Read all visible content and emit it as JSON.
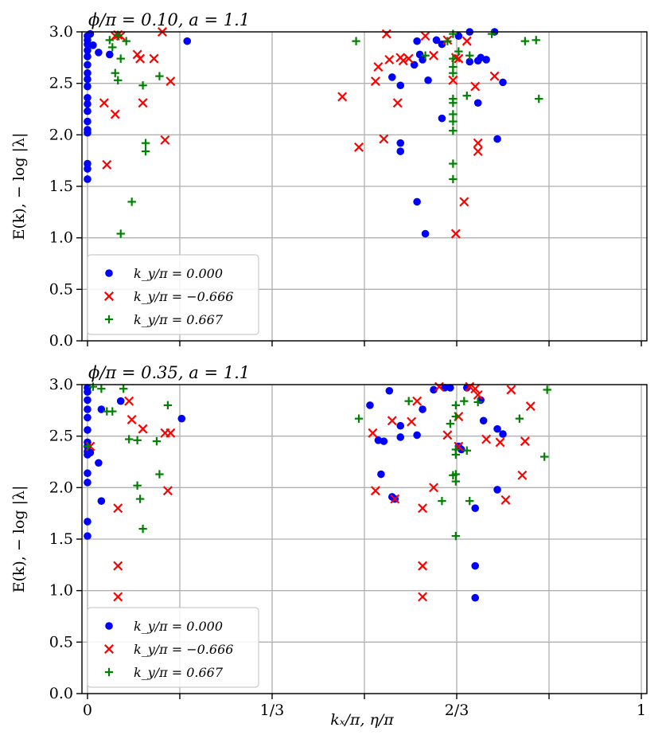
{
  "chart_data": [
    {
      "type": "scatter",
      "title": "ϕ/π = 0.10,  a = 1.1",
      "ylabel": "E(k), − log |λ|",
      "xlabel": "",
      "xlim": [
        -0.01,
        1.01
      ],
      "ylim": [
        0,
        3
      ],
      "yticks": [
        "0.0",
        "0.5",
        "1.0",
        "1.5",
        "2.0",
        "2.5",
        "3.0"
      ],
      "xtick_labels": [],
      "grid": true,
      "legend_position": "lower-left",
      "series": [
        {
          "name": "k_y/π = 0.000",
          "marker": "circle",
          "color": "#0000ff",
          "points": [
            [
              0,
              2.96
            ],
            [
              0,
              2.92
            ],
            [
              0,
              2.88
            ],
            [
              0,
              2.82
            ],
            [
              0,
              2.76
            ],
            [
              0,
              2.68
            ],
            [
              0,
              2.6
            ],
            [
              0,
              2.54
            ],
            [
              0,
              2.47
            ],
            [
              0,
              2.36
            ],
            [
              0,
              2.3
            ],
            [
              0,
              2.23
            ],
            [
              0,
              2.13
            ],
            [
              0,
              2.05
            ],
            [
              0,
              2.02
            ],
            [
              0,
              1.72
            ],
            [
              0,
              1.67
            ],
            [
              0,
              1.57
            ],
            [
              0.005,
              2.98
            ],
            [
              0.01,
              2.87
            ],
            [
              0.02,
              2.8
            ],
            [
              0.04,
              2.78
            ],
            [
              0.18,
              2.91
            ],
            [
              0.55,
              2.56
            ],
            [
              0.565,
              2.48
            ],
            [
              0.565,
              1.92
            ],
            [
              0.565,
              1.84
            ],
            [
              0.59,
              2.68
            ],
            [
              0.595,
              2.91
            ],
            [
              0.595,
              1.35
            ],
            [
              0.6,
              2.78
            ],
            [
              0.605,
              2.73
            ],
            [
              0.61,
              1.04
            ],
            [
              0.615,
              2.53
            ],
            [
              0.63,
              2.92
            ],
            [
              0.64,
              2.88
            ],
            [
              0.64,
              2.16
            ],
            [
              0.67,
              2.96
            ],
            [
              0.69,
              2.71
            ],
            [
              0.69,
              3.0
            ],
            [
              0.705,
              2.72
            ],
            [
              0.705,
              2.31
            ],
            [
              0.71,
              2.75
            ],
            [
              0.72,
              2.73
            ],
            [
              0.735,
              3.0
            ],
            [
              0.74,
              1.96
            ],
            [
              0.75,
              2.51
            ]
          ]
        },
        {
          "name": "k_y/π = −0.666",
          "marker": "x",
          "color": "#ff0000",
          "points": [
            [
              0.05,
              2.96
            ],
            [
              0.055,
              2.97
            ],
            [
              0.06,
              2.96
            ],
            [
              0.03,
              2.31
            ],
            [
              0.035,
              1.71
            ],
            [
              0.05,
              2.2
            ],
            [
              0.09,
              2.78
            ],
            [
              0.095,
              2.74
            ],
            [
              0.1,
              2.31
            ],
            [
              0.12,
              2.74
            ],
            [
              0.135,
              3.0
            ],
            [
              0.15,
              2.52
            ],
            [
              0.14,
              1.95
            ],
            [
              0.46,
              2.37
            ],
            [
              0.49,
              1.88
            ],
            [
              0.52,
              2.52
            ],
            [
              0.525,
              2.66
            ],
            [
              0.535,
              1.96
            ],
            [
              0.54,
              2.98
            ],
            [
              0.545,
              2.73
            ],
            [
              0.56,
              2.31
            ],
            [
              0.565,
              2.75
            ],
            [
              0.57,
              2.72
            ],
            [
              0.58,
              2.74
            ],
            [
              0.61,
              2.96
            ],
            [
              0.625,
              2.77
            ],
            [
              0.65,
              2.92
            ],
            [
              0.66,
              2.53
            ],
            [
              0.665,
              1.04
            ],
            [
              0.665,
              2.75
            ],
            [
              0.67,
              2.74
            ],
            [
              0.68,
              1.35
            ],
            [
              0.685,
              2.91
            ],
            [
              0.7,
              2.47
            ],
            [
              0.705,
              1.92
            ],
            [
              0.705,
              1.84
            ],
            [
              0.735,
              2.57
            ]
          ]
        },
        {
          "name": "k_y/π = 0.667",
          "marker": "plus",
          "color": "#008000",
          "points": [
            [
              0.04,
              2.92
            ],
            [
              0.045,
              2.85
            ],
            [
              0.05,
              2.6
            ],
            [
              0.055,
              2.53
            ],
            [
              0.06,
              2.74
            ],
            [
              0.07,
              2.91
            ],
            [
              0.055,
              2.97
            ],
            [
              0.06,
              1.04
            ],
            [
              0.08,
              1.35
            ],
            [
              0.1,
              2.48
            ],
            [
              0.105,
              1.92
            ],
            [
              0.105,
              1.84
            ],
            [
              0.13,
              2.57
            ],
            [
              0.485,
              2.91
            ],
            [
              0.61,
              2.77
            ],
            [
              0.65,
              2.91
            ],
            [
              0.66,
              2.98
            ],
            [
              0.66,
              2.74
            ],
            [
              0.66,
              2.66
            ],
            [
              0.66,
              2.6
            ],
            [
              0.66,
              2.35
            ],
            [
              0.66,
              2.31
            ],
            [
              0.66,
              2.2
            ],
            [
              0.66,
              2.13
            ],
            [
              0.66,
              2.04
            ],
            [
              0.66,
              1.72
            ],
            [
              0.66,
              1.57
            ],
            [
              0.67,
              2.81
            ],
            [
              0.685,
              2.38
            ],
            [
              0.69,
              2.77
            ],
            [
              0.73,
              2.98
            ],
            [
              0.79,
              2.91
            ],
            [
              0.81,
              2.92
            ],
            [
              0.815,
              2.35
            ]
          ]
        }
      ]
    },
    {
      "type": "scatter",
      "title": "ϕ/π = 0.35,  a = 1.1",
      "ylabel": "E(k), − log |λ|",
      "xlabel": "kₓ/π, η/π",
      "xlim": [
        -0.01,
        1.01
      ],
      "ylim": [
        0,
        3
      ],
      "yticks": [
        "0.0",
        "0.5",
        "1.0",
        "1.5",
        "2.0",
        "2.5",
        "3.0"
      ],
      "xtick_labels": [
        {
          "x": 0,
          "label": "0"
        },
        {
          "x": 0.3333,
          "label": "1/3"
        },
        {
          "x": 0.6667,
          "label": "2/3"
        },
        {
          "x": 1,
          "label": "1"
        }
      ],
      "grid": true,
      "legend_position": "lower-left",
      "series": [
        {
          "name": "k_y/π = 0.000",
          "marker": "circle",
          "color": "#0000ff",
          "points": [
            [
              0,
              2.97
            ],
            [
              0,
              2.93
            ],
            [
              0,
              2.85
            ],
            [
              0,
              2.76
            ],
            [
              0,
              2.68
            ],
            [
              0,
              2.56
            ],
            [
              0,
              2.44
            ],
            [
              0,
              2.4
            ],
            [
              0,
              2.35
            ],
            [
              0,
              2.32
            ],
            [
              0,
              2.14
            ],
            [
              0,
              2.05
            ],
            [
              0,
              1.67
            ],
            [
              0,
              1.53
            ],
            [
              0.005,
              2.34
            ],
            [
              0.02,
              2.24
            ],
            [
              0.025,
              2.76
            ],
            [
              0.025,
              1.87
            ],
            [
              0.06,
              2.84
            ],
            [
              0.17,
              2.67
            ],
            [
              0.51,
              2.8
            ],
            [
              0.525,
              2.46
            ],
            [
              0.53,
              2.13
            ],
            [
              0.535,
              2.45
            ],
            [
              0.545,
              2.94
            ],
            [
              0.55,
              1.91
            ],
            [
              0.555,
              1.89
            ],
            [
              0.565,
              2.6
            ],
            [
              0.565,
              2.49
            ],
            [
              0.595,
              2.51
            ],
            [
              0.605,
              2.76
            ],
            [
              0.625,
              2.95
            ],
            [
              0.645,
              2.97
            ],
            [
              0.655,
              2.97
            ],
            [
              0.67,
              2.4
            ],
            [
              0.675,
              2.37
            ],
            [
              0.685,
              2.97
            ],
            [
              0.7,
              1.8
            ],
            [
              0.7,
              1.24
            ],
            [
              0.7,
              0.93
            ],
            [
              0.71,
              2.85
            ],
            [
              0.715,
              2.65
            ],
            [
              0.74,
              2.57
            ],
            [
              0.75,
              2.52
            ],
            [
              0.74,
              1.98
            ]
          ]
        },
        {
          "name": "k_y/π = −0.666",
          "marker": "x",
          "color": "#ff0000",
          "points": [
            [
              0.005,
              2.4
            ],
            [
              0.055,
              1.8
            ],
            [
              0.055,
              1.24
            ],
            [
              0.055,
              0.94
            ],
            [
              0.075,
              2.84
            ],
            [
              0.08,
              2.66
            ],
            [
              0.1,
              2.57
            ],
            [
              0.14,
              2.53
            ],
            [
              0.145,
              1.97
            ],
            [
              0.15,
              2.53
            ],
            [
              0.515,
              2.53
            ],
            [
              0.52,
              1.97
            ],
            [
              0.55,
              2.65
            ],
            [
              0.555,
              1.89
            ],
            [
              0.585,
              2.64
            ],
            [
              0.595,
              2.84
            ],
            [
              0.605,
              1.8
            ],
            [
              0.605,
              1.24
            ],
            [
              0.605,
              0.94
            ],
            [
              0.625,
              2.0
            ],
            [
              0.635,
              2.98
            ],
            [
              0.65,
              2.51
            ],
            [
              0.67,
              2.69
            ],
            [
              0.67,
              2.4
            ],
            [
              0.69,
              2.98
            ],
            [
              0.7,
              2.96
            ],
            [
              0.705,
              2.9
            ],
            [
              0.72,
              2.47
            ],
            [
              0.745,
              2.44
            ],
            [
              0.755,
              1.88
            ],
            [
              0.765,
              2.95
            ],
            [
              0.785,
              2.12
            ],
            [
              0.79,
              2.45
            ],
            [
              0.8,
              2.79
            ]
          ]
        },
        {
          "name": "k_y/π = 0.667",
          "marker": "plus",
          "color": "#008000",
          "points": [
            [
              0,
              2.4
            ],
            [
              0.01,
              2.98
            ],
            [
              0.025,
              2.96
            ],
            [
              0.035,
              2.74
            ],
            [
              0.045,
              2.74
            ],
            [
              0.065,
              2.96
            ],
            [
              0.075,
              2.47
            ],
            [
              0.09,
              2.46
            ],
            [
              0.09,
              2.02
            ],
            [
              0.095,
              1.89
            ],
            [
              0.1,
              1.6
            ],
            [
              0.125,
              2.45
            ],
            [
              0.13,
              2.13
            ],
            [
              0.145,
              2.8
            ],
            [
              0.49,
              2.67
            ],
            [
              0.58,
              2.84
            ],
            [
              0.64,
              1.87
            ],
            [
              0.655,
              2.62
            ],
            [
              0.66,
              2.12
            ],
            [
              0.665,
              2.8
            ],
            [
              0.665,
              2.69
            ],
            [
              0.665,
              2.37
            ],
            [
              0.665,
              2.32
            ],
            [
              0.665,
              2.13
            ],
            [
              0.665,
              2.06
            ],
            [
              0.665,
              1.53
            ],
            [
              0.68,
              2.84
            ],
            [
              0.685,
              2.36
            ],
            [
              0.69,
              1.87
            ],
            [
              0.705,
              2.83
            ],
            [
              0.78,
              2.67
            ],
            [
              0.825,
              2.3
            ],
            [
              0.83,
              2.95
            ]
          ]
        }
      ]
    }
  ]
}
